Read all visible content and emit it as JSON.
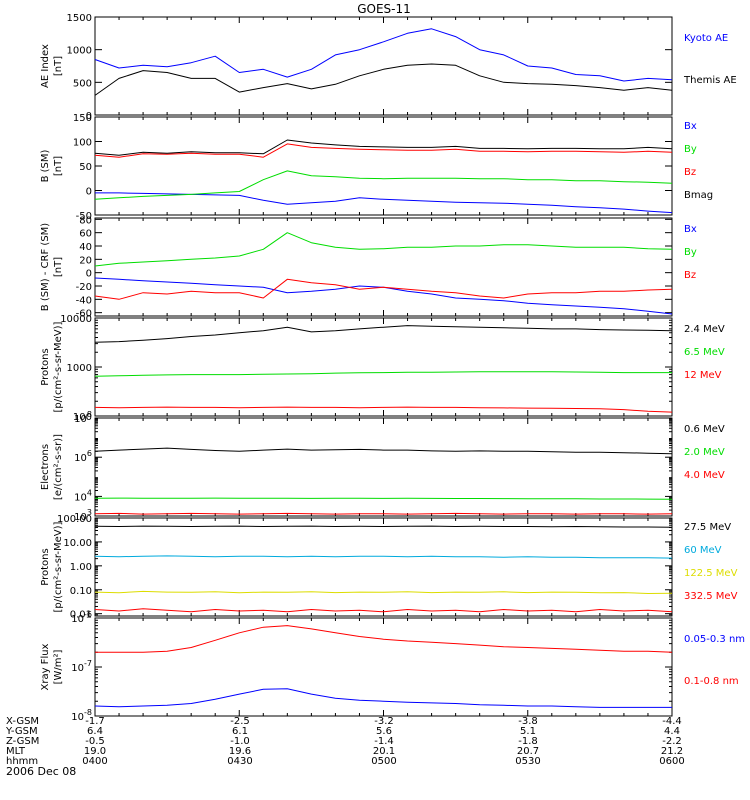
{
  "title": "GOES-11",
  "date_label": "2006 Dec 08",
  "colors": {
    "black": "#000000",
    "blue": "#0000ff",
    "red": "#ff0000",
    "green": "#00dd00",
    "cyan": "#00aadd",
    "yellow": "#dddd00"
  },
  "ephemeris": {
    "row_labels": [
      "X-GSM",
      "Y-GSM",
      "Z-GSM",
      "MLT",
      "hhmm"
    ],
    "columns": [
      [
        "-1.7",
        "6.4",
        "-0.5",
        "19.0",
        "0400"
      ],
      [
        "-2.5",
        "6.1",
        "-1.0",
        "19.6",
        "0430"
      ],
      [
        "-3.2",
        "5.6",
        "-1.4",
        "20.1",
        "0500"
      ],
      [
        "-3.8",
        "5.1",
        "-1.8",
        "20.7",
        "0530"
      ],
      [
        "-4.4",
        "4.4",
        "-2.2",
        "21.2",
        "0600"
      ]
    ]
  },
  "chart_data": [
    {
      "type": "line",
      "ylabel": [
        "AE Index",
        "[nT]"
      ],
      "ylim": [
        0,
        1500
      ],
      "yticks": [
        "0",
        "500",
        "1000",
        "1500"
      ],
      "xlim": [
        0,
        120
      ],
      "x": [
        0,
        5,
        10,
        15,
        20,
        25,
        30,
        35,
        40,
        45,
        50,
        55,
        60,
        65,
        70,
        75,
        80,
        85,
        90,
        95,
        100,
        105,
        110,
        115,
        120
      ],
      "series": [
        {
          "name": "Kyoto AE",
          "color": "#0000ff",
          "values": [
            850,
            720,
            760,
            740,
            800,
            900,
            650,
            700,
            580,
            700,
            920,
            1000,
            1120,
            1250,
            1320,
            1200,
            1000,
            920,
            750,
            720,
            620,
            600,
            520,
            560,
            540
          ]
        },
        {
          "name": "Themis AE",
          "color": "#000000",
          "values": [
            300,
            560,
            680,
            650,
            560,
            560,
            350,
            420,
            480,
            400,
            470,
            600,
            700,
            760,
            780,
            760,
            600,
            500,
            480,
            470,
            450,
            420,
            380,
            420,
            380
          ]
        }
      ]
    },
    {
      "type": "line",
      "ylabel": [
        "B (SM)",
        "[nT]"
      ],
      "ylim": [
        -50,
        150
      ],
      "yticks": [
        "-50",
        "0",
        "50",
        "100",
        "150"
      ],
      "xlim": [
        0,
        120
      ],
      "x": [
        0,
        5,
        10,
        15,
        20,
        25,
        30,
        35,
        40,
        45,
        50,
        55,
        60,
        65,
        70,
        75,
        80,
        85,
        90,
        95,
        100,
        105,
        110,
        115,
        120
      ],
      "series": [
        {
          "name": "Bx",
          "color": "#0000ff",
          "values": [
            -5,
            -5,
            -6,
            -7,
            -8,
            -9,
            -10,
            -20,
            -28,
            -25,
            -22,
            -15,
            -18,
            -20,
            -22,
            -24,
            -25,
            -26,
            -28,
            -30,
            -33,
            -35,
            -38,
            -42,
            -45
          ]
        },
        {
          "name": "By",
          "color": "#00dd00",
          "values": [
            -18,
            -15,
            -12,
            -10,
            -8,
            -5,
            -2,
            22,
            40,
            30,
            28,
            25,
            24,
            25,
            25,
            25,
            24,
            24,
            22,
            22,
            20,
            20,
            18,
            17,
            15
          ]
        },
        {
          "name": "Bz",
          "color": "#ff0000",
          "values": [
            72,
            68,
            75,
            74,
            76,
            74,
            74,
            68,
            95,
            88,
            86,
            84,
            83,
            82,
            82,
            84,
            80,
            80,
            79,
            80,
            80,
            79,
            78,
            80,
            78
          ]
        },
        {
          "name": "Bmag",
          "color": "#000000",
          "values": [
            76,
            72,
            78,
            76,
            79,
            77,
            77,
            75,
            103,
            97,
            93,
            90,
            89,
            88,
            88,
            90,
            86,
            86,
            85,
            86,
            86,
            85,
            85,
            88,
            85
          ]
        }
      ]
    },
    {
      "type": "line",
      "ylabel": [
        "B (SM) - CRF (SM)",
        "[nT]"
      ],
      "ylim": [
        -65,
        82
      ],
      "yticks": [
        "-60",
        "-40",
        "-20",
        "0",
        "20",
        "40",
        "60",
        "80"
      ],
      "xlim": [
        0,
        120
      ],
      "x": [
        0,
        5,
        10,
        15,
        20,
        25,
        30,
        35,
        40,
        45,
        50,
        55,
        60,
        65,
        70,
        75,
        80,
        85,
        90,
        95,
        100,
        105,
        110,
        115,
        120
      ],
      "series": [
        {
          "name": "Bx",
          "color": "#0000ff",
          "values": [
            -8,
            -10,
            -12,
            -14,
            -16,
            -18,
            -20,
            -22,
            -30,
            -28,
            -25,
            -20,
            -22,
            -28,
            -32,
            -38,
            -40,
            -42,
            -46,
            -48,
            -50,
            -52,
            -54,
            -58,
            -62
          ]
        },
        {
          "name": "By",
          "color": "#00dd00",
          "values": [
            10,
            14,
            16,
            18,
            20,
            22,
            25,
            35,
            60,
            45,
            38,
            35,
            36,
            38,
            38,
            40,
            40,
            42,
            42,
            40,
            38,
            38,
            38,
            36,
            35
          ]
        },
        {
          "name": "Bz",
          "color": "#ff0000",
          "values": [
            -35,
            -40,
            -30,
            -32,
            -28,
            -30,
            -30,
            -38,
            -10,
            -15,
            -18,
            -25,
            -22,
            -25,
            -28,
            -30,
            -35,
            -38,
            -32,
            -30,
            -30,
            -28,
            -28,
            -26,
            -25
          ]
        }
      ]
    },
    {
      "type": "line",
      "log_scale": true,
      "ylabel": [
        "Protons",
        "[p/(cm²-s-sr-MeV)]"
      ],
      "ylim": [
        100,
        10000
      ],
      "yticks": [
        "100",
        "1000",
        "10000"
      ],
      "xlim": [
        0,
        120
      ],
      "x": [
        0,
        5,
        10,
        15,
        20,
        25,
        30,
        35,
        40,
        45,
        50,
        55,
        60,
        65,
        70,
        75,
        80,
        85,
        90,
        95,
        100,
        105,
        110,
        115,
        120
      ],
      "series": [
        {
          "name": "12 MeV",
          "color": "#ff0000",
          "values": [
            150,
            148,
            150,
            152,
            150,
            150,
            148,
            150,
            152,
            150,
            150,
            148,
            150,
            152,
            150,
            150,
            148,
            146,
            145,
            144,
            142,
            140,
            135,
            125,
            120
          ]
        },
        {
          "name": "6.5 MeV",
          "color": "#00dd00",
          "values": [
            650,
            660,
            680,
            690,
            700,
            700,
            700,
            710,
            720,
            730,
            750,
            760,
            770,
            780,
            780,
            790,
            800,
            800,
            800,
            800,
            790,
            780,
            770,
            770,
            770
          ]
        },
        {
          "name": "2.4 MeV",
          "color": "#000000",
          "values": [
            3200,
            3300,
            3500,
            3800,
            4200,
            4500,
            5000,
            5500,
            6500,
            5200,
            5500,
            6000,
            6500,
            7000,
            6800,
            6600,
            6500,
            6300,
            6200,
            6000,
            6000,
            5800,
            5700,
            5600,
            5500
          ]
        }
      ]
    },
    {
      "type": "line",
      "log_scale": true,
      "ylabel": [
        "Electrons",
        "[e/(cm²-s-sr)]"
      ],
      "ylim": [
        1000,
        100000000
      ],
      "yticks": [
        "10^3",
        "10^4",
        "10^6",
        "10^8"
      ],
      "xlim": [
        0,
        120
      ],
      "x": [
        0,
        5,
        10,
        15,
        20,
        25,
        30,
        35,
        40,
        45,
        50,
        55,
        60,
        65,
        70,
        75,
        80,
        85,
        90,
        95,
        100,
        105,
        110,
        115,
        120
      ],
      "series": [
        {
          "name": "4.0 MeV",
          "color": "#ff0000",
          "values": [
            1300,
            1350,
            1250,
            1300,
            1350,
            1300,
            1250,
            1300,
            1350,
            1300,
            1250,
            1300,
            1300,
            1250,
            1300,
            1350,
            1300,
            1250,
            1300,
            1300,
            1250,
            1300,
            1300,
            1250,
            1300
          ]
        },
        {
          "name": "2.0 MeV",
          "color": "#00dd00",
          "values": [
            8000,
            8200,
            8100,
            8000,
            8100,
            8200,
            8000,
            8100,
            8000,
            7900,
            8000,
            8000,
            7900,
            8000,
            7900,
            7800,
            7800,
            7700,
            7600,
            7600,
            7500,
            7400,
            7400,
            7300,
            7200
          ]
        },
        {
          "name": "0.6 MeV",
          "color": "#000000",
          "values": [
            2000000,
            2300000,
            2600000,
            2900000,
            2500000,
            2200000,
            2000000,
            2300000,
            2600000,
            2300000,
            2400000,
            2500000,
            2300000,
            2300000,
            2100000,
            2000000,
            2100000,
            2000000,
            2000000,
            1900000,
            1800000,
            1800000,
            1700000,
            1600000,
            1500000
          ]
        }
      ]
    },
    {
      "type": "line",
      "log_scale": true,
      "ylabel": [
        "Protons",
        "[p/(cm²-s-sr-MeV)]"
      ],
      "ylim": [
        0.008,
        100
      ],
      "yticks": [
        "0.01",
        "0.10",
        "1.00",
        "10.00",
        "100.00"
      ],
      "xlim": [
        0,
        120
      ],
      "x": [
        0,
        5,
        10,
        15,
        20,
        25,
        30,
        35,
        40,
        45,
        50,
        55,
        60,
        65,
        70,
        75,
        80,
        85,
        90,
        95,
        100,
        105,
        110,
        115,
        120
      ],
      "series": [
        {
          "name": "332.5 MeV",
          "color": "#ff0000",
          "values": [
            0.015,
            0.013,
            0.016,
            0.014,
            0.012,
            0.015,
            0.013,
            0.014,
            0.012,
            0.015,
            0.013,
            0.014,
            0.012,
            0.015,
            0.013,
            0.014,
            0.012,
            0.015,
            0.013,
            0.014,
            0.012,
            0.015,
            0.013,
            0.014,
            0.012
          ]
        },
        {
          "name": "122.5 MeV",
          "color": "#dddd00",
          "values": [
            0.08,
            0.075,
            0.085,
            0.08,
            0.078,
            0.082,
            0.075,
            0.08,
            0.078,
            0.082,
            0.076,
            0.08,
            0.078,
            0.082,
            0.076,
            0.08,
            0.078,
            0.082,
            0.076,
            0.08,
            0.078,
            0.075,
            0.076,
            0.07,
            0.072
          ]
        },
        {
          "name": "60 MeV",
          "color": "#00aadd",
          "values": [
            2.5,
            2.4,
            2.5,
            2.6,
            2.5,
            2.4,
            2.5,
            2.5,
            2.4,
            2.5,
            2.4,
            2.5,
            2.5,
            2.4,
            2.5,
            2.4,
            2.4,
            2.3,
            2.4,
            2.3,
            2.3,
            2.2,
            2.2,
            2.2,
            2.1
          ]
        },
        {
          "name": "27.5 MeV",
          "color": "#000000",
          "values": [
            45,
            44,
            46,
            45,
            44,
            45,
            46,
            44,
            45,
            46,
            44,
            45,
            44,
            45,
            46,
            44,
            45,
            44,
            44,
            43,
            44,
            43,
            42,
            42,
            41
          ]
        }
      ]
    },
    {
      "type": "line",
      "log_scale": true,
      "ylabel": [
        "Xray Flux",
        "[W/m²]"
      ],
      "ylim": [
        1e-08,
        1e-06
      ],
      "yticks": [
        "10^-8",
        "10^-7",
        "10^-6"
      ],
      "xlim": [
        0,
        120
      ],
      "x": [
        0,
        5,
        10,
        15,
        20,
        25,
        30,
        35,
        40,
        45,
        50,
        55,
        60,
        65,
        70,
        75,
        80,
        85,
        90,
        95,
        100,
        105,
        110,
        115,
        120
      ],
      "series": [
        {
          "name": "0.1-0.8 nm",
          "color": "#ff0000",
          "values": [
            2e-07,
            2e-07,
            2e-07,
            2.1e-07,
            2.5e-07,
            3.5e-07,
            5e-07,
            6.5e-07,
            7e-07,
            6e-07,
            5e-07,
            4.2e-07,
            3.7e-07,
            3.4e-07,
            3.2e-07,
            3e-07,
            2.8e-07,
            2.6e-07,
            2.5e-07,
            2.4e-07,
            2.3e-07,
            2.2e-07,
            2.1e-07,
            2.1e-07,
            2e-07
          ]
        },
        {
          "name": "0.05-0.3 nm",
          "color": "#0000ff",
          "values": [
            1.6e-08,
            1.55e-08,
            1.6e-08,
            1.65e-08,
            1.8e-08,
            2.2e-08,
            2.8e-08,
            3.5e-08,
            3.6e-08,
            2.8e-08,
            2.3e-08,
            2.1e-08,
            2e-08,
            1.9e-08,
            1.85e-08,
            1.8e-08,
            1.7e-08,
            1.65e-08,
            1.6e-08,
            1.6e-08,
            1.55e-08,
            1.5e-08,
            1.5e-08,
            1.5e-08,
            1.5e-08
          ]
        }
      ]
    }
  ]
}
